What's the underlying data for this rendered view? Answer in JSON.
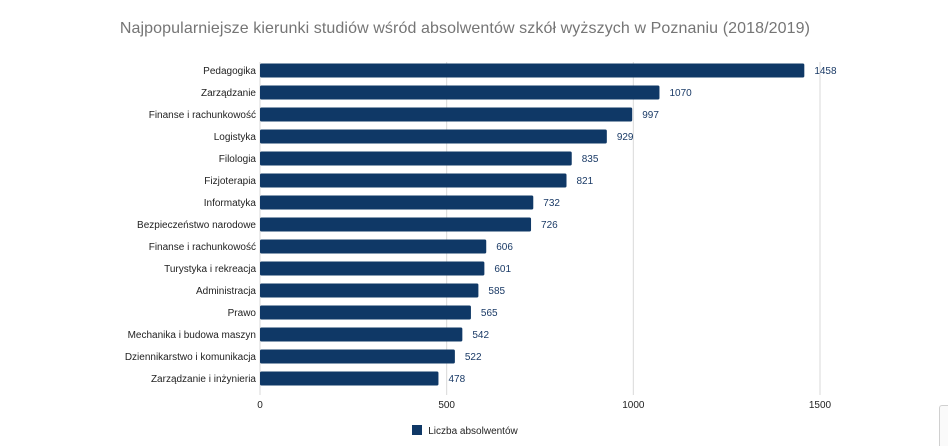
{
  "chart_data": {
    "type": "bar",
    "orientation": "horizontal",
    "title": "Najpopularniejsze kierunki studiów wśród absolwentów szkół wyższych w Poznaniu (2018/2019)",
    "categories": [
      "Pedagogika",
      "Zarządzanie",
      "Finanse i rachunkowość",
      "Logistyka",
      "Filologia",
      "Fizjoterapia",
      "Informatyka",
      "Bezpieczeństwo narodowe",
      "Finanse i rachunkowość",
      "Turystyka i rekreacja",
      "Administracja",
      "Prawo",
      "Mechanika i budowa maszyn",
      "Dziennikarstwo i komunikacja",
      "Zarządzanie i inżynieria"
    ],
    "series": [
      {
        "name": "Liczba absolwentów",
        "values": [
          1458,
          1070,
          997,
          929,
          835,
          821,
          732,
          726,
          606,
          601,
          585,
          565,
          542,
          522,
          478
        ]
      }
    ],
    "xlim": [
      0,
      1500
    ],
    "xticks": [
      0,
      500,
      1000,
      1500
    ],
    "xlabel": "",
    "ylabel": "",
    "grid": true,
    "legend": "bottom",
    "colors": {
      "bar": "#0f3866",
      "value_label": "#1a3a66",
      "title": "#757575"
    }
  }
}
